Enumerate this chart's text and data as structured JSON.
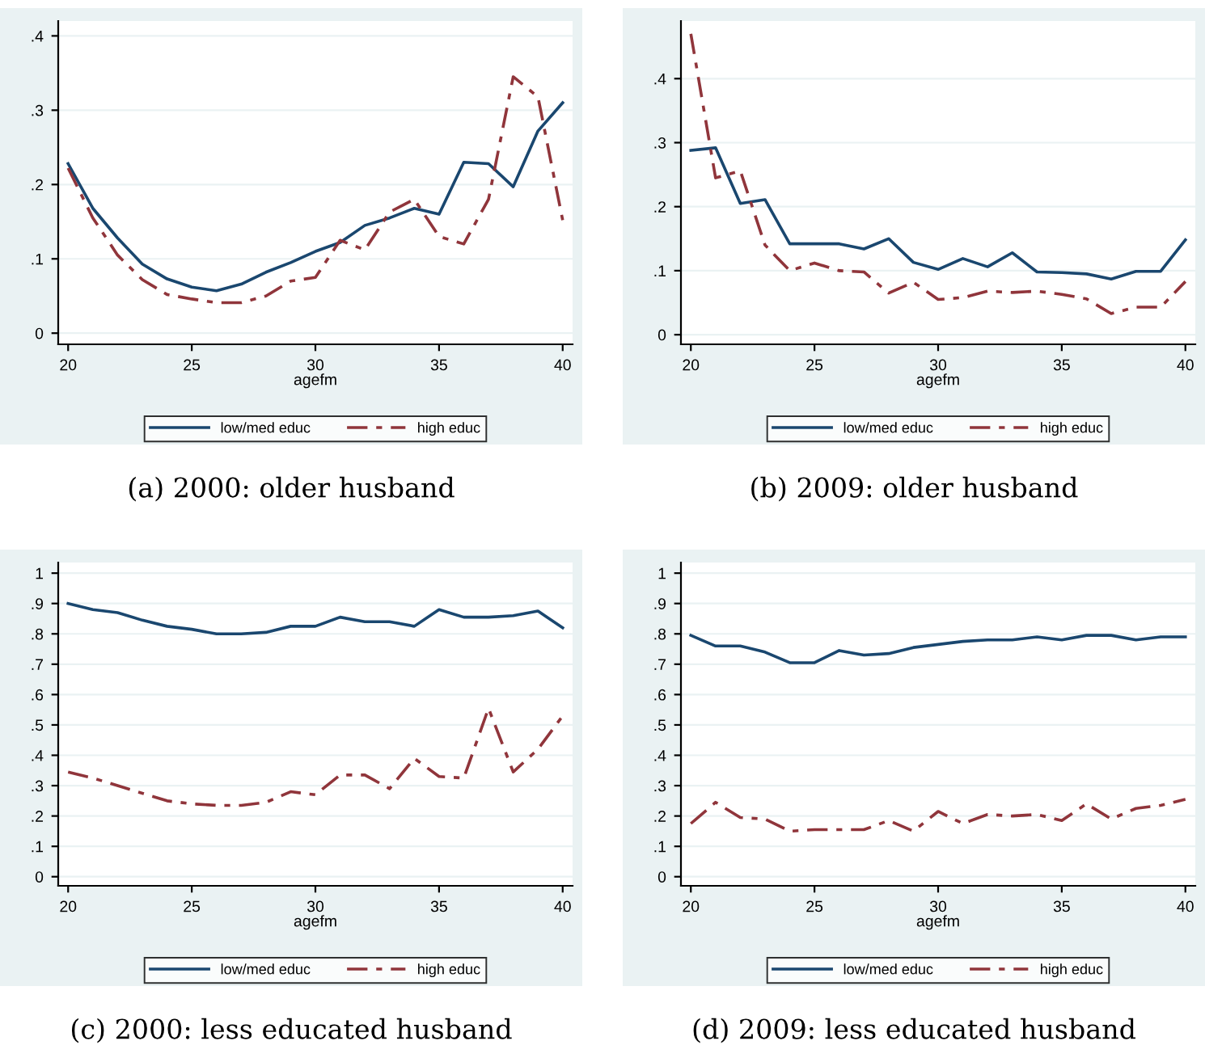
{
  "chart_data": [
    {
      "type": "line",
      "title": "(a) 2000: older husband",
      "xlabel": "agefm",
      "x": [
        20,
        21,
        22,
        23,
        24,
        25,
        26,
        27,
        28,
        29,
        30,
        31,
        32,
        33,
        34,
        35,
        36,
        37,
        38,
        39,
        40
      ],
      "xlim": [
        19.6,
        40.4
      ],
      "xticks": [
        20,
        25,
        30,
        35,
        40
      ],
      "ylim": [
        -0.015,
        0.42
      ],
      "yticks": [
        0,
        {
          "value": 0.1,
          "label": ".1"
        },
        {
          "value": 0.2,
          "label": ".2"
        },
        {
          "value": 0.3,
          "label": ".3"
        },
        {
          "value": 0.4,
          "label": ".4"
        }
      ],
      "grid": "y",
      "legend": "bottom",
      "marker": "none",
      "series": [
        {
          "name": "low/med educ",
          "color": "#1a476f",
          "line_style": "solid",
          "values": [
            0.228,
            0.168,
            0.128,
            0.093,
            0.073,
            0.062,
            0.057,
            0.066,
            0.082,
            0.095,
            0.11,
            0.122,
            0.145,
            0.155,
            0.168,
            0.16,
            0.23,
            0.228,
            0.197,
            0.272,
            0.31
          ]
        },
        {
          "name": "high educ",
          "color": "#90353b",
          "line_style": "dashed",
          "values": [
            0.222,
            0.155,
            0.105,
            0.072,
            0.052,
            0.046,
            0.041,
            0.041,
            0.05,
            0.07,
            0.075,
            0.125,
            0.112,
            0.163,
            0.18,
            0.13,
            0.12,
            0.18,
            0.345,
            0.318,
            0.152
          ]
        }
      ]
    },
    {
      "type": "line",
      "title": "(b) 2009: older husband",
      "xlabel": "agefm",
      "x": [
        20,
        21,
        22,
        23,
        24,
        25,
        26,
        27,
        28,
        29,
        30,
        31,
        32,
        33,
        34,
        35,
        36,
        37,
        38,
        39,
        40
      ],
      "xlim": [
        19.6,
        40.4
      ],
      "xticks": [
        20,
        25,
        30,
        35,
        40
      ],
      "ylim": [
        -0.015,
        0.49
      ],
      "yticks": [
        0,
        {
          "value": 0.1,
          "label": ".1"
        },
        {
          "value": 0.2,
          "label": ".2"
        },
        {
          "value": 0.3,
          "label": ".3"
        },
        {
          "value": 0.4,
          "label": ".4"
        }
      ],
      "grid": "y",
      "legend": "bottom",
      "marker": "none",
      "series": [
        {
          "name": "low/med educ",
          "color": "#1a476f",
          "line_style": "solid",
          "values": [
            0.288,
            0.292,
            0.205,
            0.211,
            0.142,
            0.142,
            0.142,
            0.134,
            0.15,
            0.113,
            0.102,
            0.119,
            0.106,
            0.128,
            0.098,
            0.097,
            0.095,
            0.087,
            0.099,
            0.099,
            0.148
          ]
        },
        {
          "name": "high educ",
          "color": "#90353b",
          "line_style": "dashed",
          "values": [
            0.47,
            0.245,
            0.256,
            0.14,
            0.1,
            0.112,
            0.1,
            0.098,
            0.065,
            0.082,
            0.055,
            0.058,
            0.068,
            0.066,
            0.068,
            0.063,
            0.056,
            0.033,
            0.043,
            0.043,
            0.083
          ]
        }
      ]
    },
    {
      "type": "line",
      "title": "(c) 2000: less educated husband",
      "xlabel": "agefm",
      "x": [
        20,
        21,
        22,
        23,
        24,
        25,
        26,
        27,
        28,
        29,
        30,
        31,
        32,
        33,
        34,
        35,
        36,
        37,
        38,
        39,
        40
      ],
      "xlim": [
        19.6,
        40.4
      ],
      "xticks": [
        20,
        25,
        30,
        35,
        40
      ],
      "ylim": [
        -0.03,
        1.035
      ],
      "yticks": [
        0,
        {
          "value": 0.1,
          "label": ".1"
        },
        {
          "value": 0.2,
          "label": ".2"
        },
        {
          "value": 0.3,
          "label": ".3"
        },
        {
          "value": 0.4,
          "label": ".4"
        },
        {
          "value": 0.5,
          "label": ".5"
        },
        {
          "value": 0.6,
          "label": ".6"
        },
        {
          "value": 0.7,
          "label": ".7"
        },
        {
          "value": 0.8,
          "label": ".8"
        },
        {
          "value": 0.9,
          "label": ".9"
        },
        1
      ],
      "grid": "y",
      "legend": "bottom",
      "marker": "none",
      "series": [
        {
          "name": "low/med educ",
          "color": "#1a476f",
          "line_style": "solid",
          "values": [
            0.9,
            0.88,
            0.87,
            0.845,
            0.825,
            0.815,
            0.8,
            0.8,
            0.805,
            0.825,
            0.825,
            0.855,
            0.84,
            0.84,
            0.825,
            0.88,
            0.855,
            0.855,
            0.86,
            0.875,
            0.82
          ]
        },
        {
          "name": "high educ",
          "color": "#90353b",
          "line_style": "dashed",
          "values": [
            0.345,
            0.325,
            0.3,
            0.275,
            0.25,
            0.24,
            0.235,
            0.235,
            0.245,
            0.28,
            0.27,
            0.335,
            0.335,
            0.29,
            0.39,
            0.33,
            0.325,
            0.555,
            0.345,
            0.42,
            0.53
          ]
        }
      ]
    },
    {
      "type": "line",
      "title": "(d) 2009: less educated husband",
      "xlabel": "agefm",
      "x": [
        20,
        21,
        22,
        23,
        24,
        25,
        26,
        27,
        28,
        29,
        30,
        31,
        32,
        33,
        34,
        35,
        36,
        37,
        38,
        39,
        40
      ],
      "xlim": [
        19.6,
        40.4
      ],
      "xticks": [
        20,
        25,
        30,
        35,
        40
      ],
      "ylim": [
        -0.03,
        1.035
      ],
      "yticks": [
        0,
        {
          "value": 0.1,
          "label": ".1"
        },
        {
          "value": 0.2,
          "label": ".2"
        },
        {
          "value": 0.3,
          "label": ".3"
        },
        {
          "value": 0.4,
          "label": ".4"
        },
        {
          "value": 0.5,
          "label": ".5"
        },
        {
          "value": 0.6,
          "label": ".6"
        },
        {
          "value": 0.7,
          "label": ".7"
        },
        {
          "value": 0.8,
          "label": ".8"
        },
        {
          "value": 0.9,
          "label": ".9"
        },
        1
      ],
      "grid": "y",
      "legend": "bottom",
      "marker": "none",
      "series": [
        {
          "name": "low/med educ",
          "color": "#1a476f",
          "line_style": "solid",
          "values": [
            0.795,
            0.76,
            0.76,
            0.74,
            0.705,
            0.705,
            0.745,
            0.73,
            0.735,
            0.755,
            0.765,
            0.775,
            0.78,
            0.78,
            0.79,
            0.78,
            0.795,
            0.795,
            0.78,
            0.79,
            0.79
          ]
        },
        {
          "name": "high educ",
          "color": "#90353b",
          "line_style": "dashed",
          "values": [
            0.175,
            0.245,
            0.195,
            0.19,
            0.15,
            0.155,
            0.155,
            0.155,
            0.185,
            0.15,
            0.215,
            0.175,
            0.205,
            0.2,
            0.205,
            0.185,
            0.24,
            0.19,
            0.225,
            0.235,
            0.255
          ]
        }
      ]
    }
  ]
}
